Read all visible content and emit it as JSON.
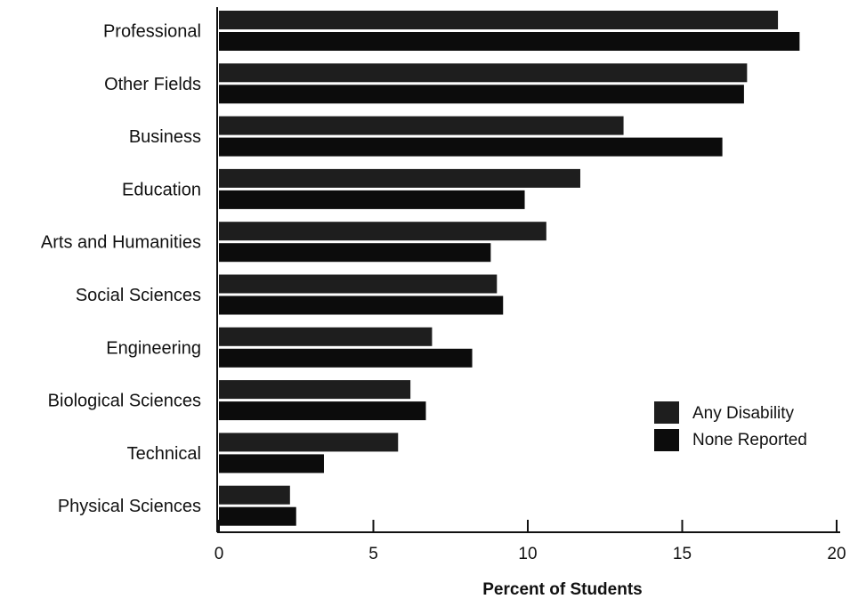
{
  "chart_data": {
    "type": "bar",
    "orientation": "horizontal",
    "categories": [
      "Professional",
      "Other Fields",
      "Business",
      "Education",
      "Arts and Humanities",
      "Social Sciences",
      "Engineering",
      "Biological Sciences",
      "Technical",
      "Physical Sciences"
    ],
    "series": [
      {
        "name": "Any Disability",
        "values": [
          18.1,
          17.1,
          13.1,
          11.7,
          10.6,
          9.0,
          6.9,
          6.2,
          5.8,
          2.3
        ]
      },
      {
        "name": "None Reported",
        "values": [
          18.8,
          17.0,
          16.3,
          9.9,
          8.8,
          9.2,
          8.2,
          6.7,
          3.4,
          2.5
        ]
      }
    ],
    "xlabel": "Percent of Students",
    "ylabel": "",
    "xlim": [
      0,
      20
    ],
    "xticks": [
      "0",
      "5",
      "10",
      "15",
      "20"
    ],
    "grid": false,
    "legend_position": "right",
    "colors": {
      "Any Disability": "#1e1e1e",
      "None Reported": "#0c0c0c"
    }
  }
}
